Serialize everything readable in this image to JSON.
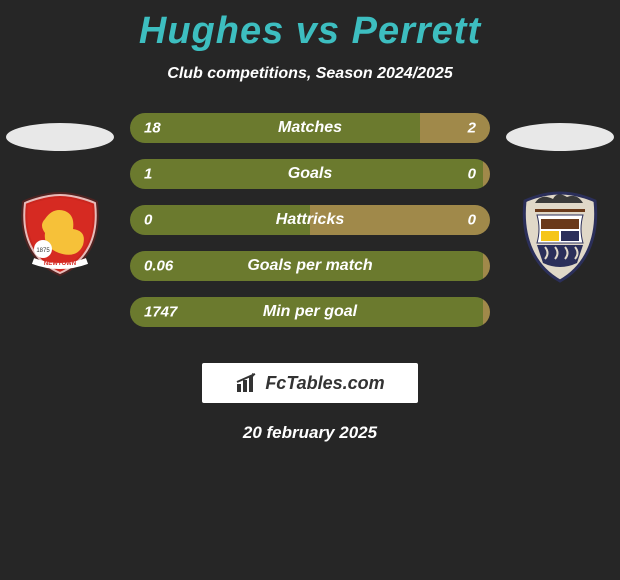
{
  "title": "Hughes vs Perrett",
  "subtitle": "Club competitions, Season 2024/2025",
  "date": "20 february 2025",
  "brand": "FcTables.com",
  "colors": {
    "left_bar": "#6b7a2e",
    "right_bar": "#a0894a",
    "title": "#3dbec0",
    "bg": "#262626"
  },
  "crests": {
    "left": {
      "name": "newtown-crest"
    },
    "right": {
      "name": "opponent-crest"
    }
  },
  "rows": [
    {
      "label": "Matches",
      "left_val": "18",
      "right_val": "2",
      "left_pct": 80.5,
      "right_pct": 19.5
    },
    {
      "label": "Goals",
      "left_val": "1",
      "right_val": "0",
      "left_pct": 98,
      "right_pct": 2
    },
    {
      "label": "Hattricks",
      "left_val": "0",
      "right_val": "0",
      "left_pct": 50,
      "right_pct": 50
    },
    {
      "label": "Goals per match",
      "left_val": "0.06",
      "right_val": "",
      "left_pct": 98,
      "right_pct": 2
    },
    {
      "label": "Min per goal",
      "left_val": "1747",
      "right_val": "",
      "left_pct": 98,
      "right_pct": 2
    }
  ]
}
